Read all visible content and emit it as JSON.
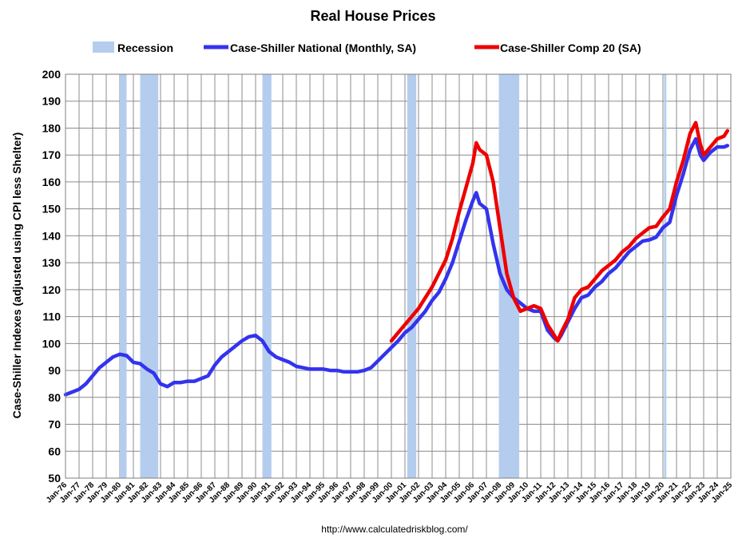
{
  "chart_data": {
    "type": "line",
    "title": "Real House Prices",
    "ylabel": "Case-Shiller Indexes (adjusted using CPI less Shelter)",
    "xlabel": "",
    "source": "http://www.calculatedriskblog.com/",
    "ylim": [
      50,
      200
    ],
    "xlim": [
      "1976-01",
      "2025-01"
    ],
    "yticks": [
      50,
      60,
      70,
      80,
      90,
      100,
      110,
      120,
      130,
      140,
      150,
      160,
      170,
      180,
      190,
      200
    ],
    "xticks": [
      "Jan-76",
      "Jan-77",
      "Jan-78",
      "Jan-79",
      "Jan-80",
      "Jan-81",
      "Jan-82",
      "Jan-83",
      "Jan-84",
      "Jan-85",
      "Jan-86",
      "Jan-87",
      "Jan-88",
      "Jan-89",
      "Jan-90",
      "Jan-91",
      "Jan-92",
      "Jan-93",
      "Jan-94",
      "Jan-95",
      "Jan-96",
      "Jan-97",
      "Jan-98",
      "Jan-99",
      "Jan-00",
      "Jan-01",
      "Jan-02",
      "Jan-03",
      "Jan-04",
      "Jan-05",
      "Jan-06",
      "Jan-07",
      "Jan-08",
      "Jan-09",
      "Jan-10",
      "Jan-11",
      "Jan-12",
      "Jan-13",
      "Jan-14",
      "Jan-15",
      "Jan-16",
      "Jan-17",
      "Jan-18",
      "Jan-19",
      "Jan-20",
      "Jan-21",
      "Jan-22",
      "Jan-23",
      "Jan-24",
      "Jan-25"
    ],
    "grid": true,
    "legend": "top",
    "recession_label": "Recession",
    "recession_color": "#b4cdee",
    "recessions": [
      [
        "1980-01",
        "1980-07"
      ],
      [
        "1981-07",
        "1982-11"
      ],
      [
        "1990-07",
        "1991-03"
      ],
      [
        "2001-03",
        "2001-11"
      ],
      [
        "2007-12",
        "2009-06"
      ],
      [
        "2020-02",
        "2020-04"
      ]
    ],
    "series": [
      {
        "name": "Case-Shiller National (Monthly, SA)",
        "color": "#3333ee",
        "x": [
          "1976-01",
          "1976-07",
          "1977-01",
          "1977-07",
          "1978-01",
          "1978-07",
          "1979-01",
          "1979-07",
          "1980-01",
          "1980-07",
          "1981-01",
          "1981-07",
          "1982-01",
          "1982-07",
          "1983-01",
          "1983-07",
          "1984-01",
          "1984-07",
          "1985-01",
          "1985-07",
          "1986-01",
          "1986-07",
          "1987-01",
          "1987-07",
          "1988-01",
          "1988-07",
          "1989-01",
          "1989-07",
          "1990-01",
          "1990-07",
          "1991-01",
          "1991-07",
          "1992-01",
          "1992-07",
          "1993-01",
          "1993-07",
          "1994-01",
          "1994-07",
          "1995-01",
          "1995-07",
          "1996-01",
          "1996-07",
          "1997-01",
          "1997-07",
          "1998-01",
          "1998-07",
          "1999-01",
          "1999-07",
          "2000-01",
          "2000-07",
          "2001-01",
          "2001-07",
          "2002-01",
          "2002-07",
          "2003-01",
          "2003-07",
          "2004-01",
          "2004-07",
          "2005-01",
          "2005-07",
          "2006-01",
          "2006-04",
          "2006-07",
          "2007-01",
          "2007-07",
          "2008-01",
          "2008-07",
          "2009-01",
          "2009-07",
          "2010-01",
          "2010-07",
          "2011-01",
          "2011-07",
          "2012-01",
          "2012-04",
          "2012-07",
          "2013-01",
          "2013-07",
          "2014-01",
          "2014-07",
          "2015-01",
          "2015-07",
          "2016-01",
          "2016-07",
          "2017-01",
          "2017-07",
          "2018-01",
          "2018-07",
          "2019-01",
          "2019-07",
          "2020-01",
          "2020-07",
          "2021-01",
          "2021-07",
          "2022-01",
          "2022-06",
          "2022-10",
          "2023-01",
          "2023-07",
          "2024-01",
          "2024-07",
          "2024-10"
        ],
        "values": [
          81,
          82,
          83,
          85,
          88,
          91,
          93,
          95,
          96,
          95.5,
          93,
          92.5,
          90.5,
          89,
          85,
          84,
          85.5,
          85.5,
          86,
          86,
          87,
          88,
          92,
          95,
          97,
          99,
          101,
          102.5,
          103,
          101,
          97,
          95,
          94,
          93,
          91.5,
          91,
          90.5,
          90.5,
          90.5,
          90,
          90,
          89.5,
          89.5,
          89.5,
          90,
          91,
          93.5,
          96,
          98.5,
          101,
          104,
          106,
          109,
          112,
          116,
          119,
          124,
          130,
          138,
          146,
          153,
          156,
          152,
          150,
          137,
          126,
          120,
          117,
          115,
          113,
          112,
          112,
          105,
          102,
          101,
          103,
          108,
          113,
          117,
          118,
          121,
          123,
          126,
          128,
          131,
          134,
          136,
          138,
          138.5,
          139.5,
          143,
          145,
          155,
          163,
          172,
          176,
          170,
          168,
          171,
          173,
          173,
          173.5
        ]
      },
      {
        "name": "Case-Shiller Comp 20  (SA)",
        "color": "#ee0000",
        "x": [
          "2000-01",
          "2000-07",
          "2001-01",
          "2001-07",
          "2002-01",
          "2002-07",
          "2003-01",
          "2003-07",
          "2004-01",
          "2004-07",
          "2005-01",
          "2005-07",
          "2006-01",
          "2006-04",
          "2006-07",
          "2007-01",
          "2007-07",
          "2008-01",
          "2008-07",
          "2009-01",
          "2009-07",
          "2010-01",
          "2010-07",
          "2011-01",
          "2011-07",
          "2012-01",
          "2012-04",
          "2012-07",
          "2013-01",
          "2013-07",
          "2014-01",
          "2014-07",
          "2015-01",
          "2015-07",
          "2016-01",
          "2016-07",
          "2017-01",
          "2017-07",
          "2018-01",
          "2018-07",
          "2019-01",
          "2019-07",
          "2020-01",
          "2020-07",
          "2021-01",
          "2021-07",
          "2022-01",
          "2022-06",
          "2022-10",
          "2023-01",
          "2023-07",
          "2024-01",
          "2024-07",
          "2024-10"
        ],
        "values": [
          101,
          104,
          107,
          110,
          113,
          117,
          121,
          126,
          131,
          139,
          149,
          158,
          167,
          174.5,
          172,
          170,
          160,
          143,
          126,
          117,
          112,
          113,
          114,
          113,
          107,
          103,
          101,
          104,
          109,
          117,
          120,
          121,
          124,
          127,
          129,
          131,
          134,
          136,
          139,
          141,
          143,
          143.5,
          147,
          150,
          160,
          168,
          178,
          182,
          174,
          170,
          173,
          176,
          177,
          179
        ]
      }
    ]
  }
}
